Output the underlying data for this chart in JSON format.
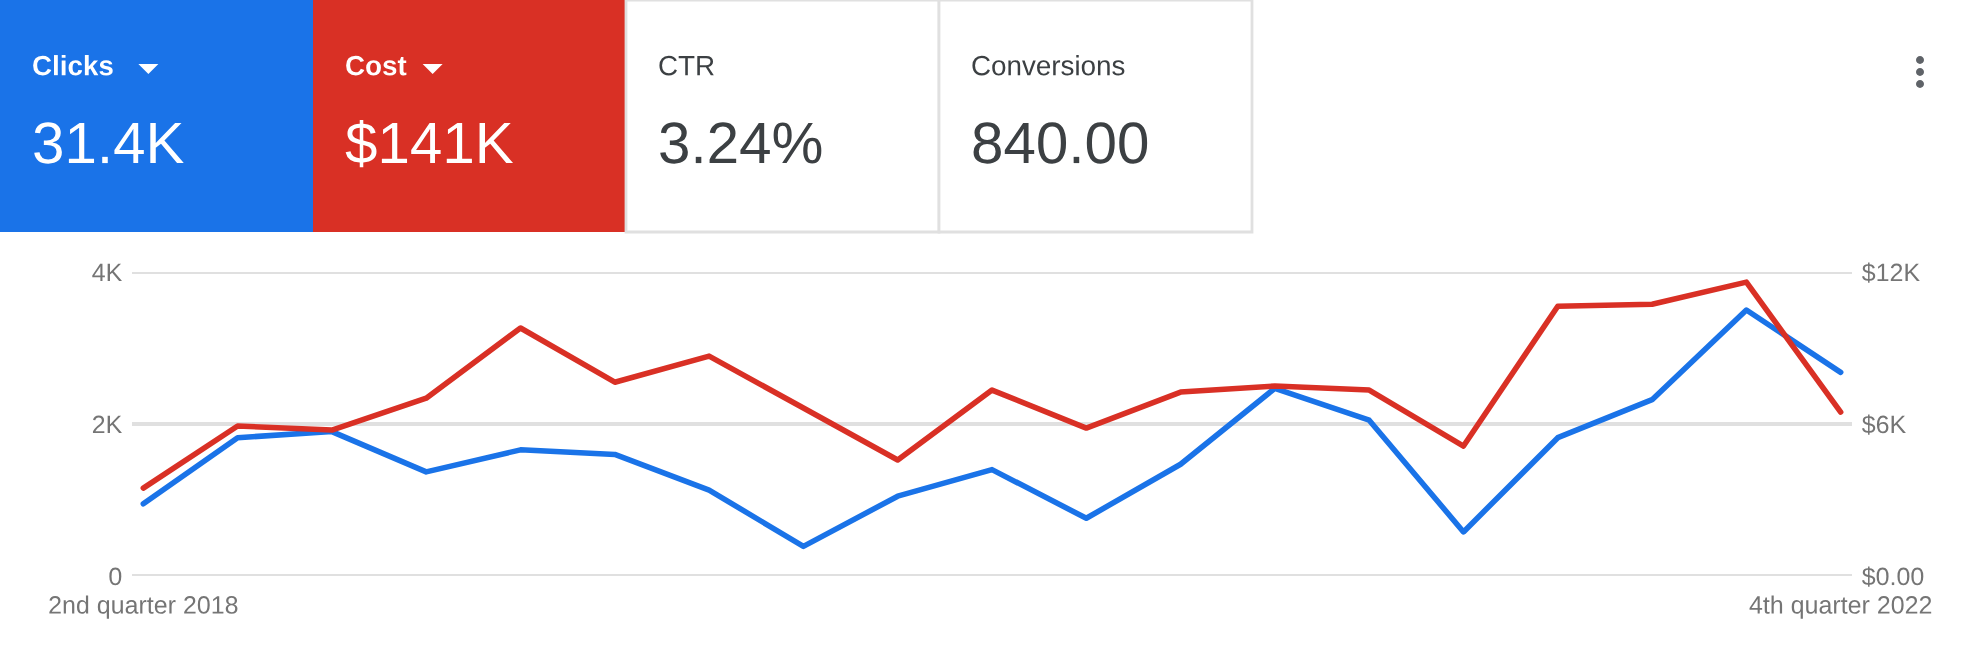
{
  "chart_data": [
    {
      "type": "other",
      "annotations": [
        "Clicks",
        "31.4K",
        "Cost",
        "$141K",
        "CTR",
        "3.24%",
        "Conversions",
        "840.00"
      ],
      "colors": [
        "#1a73e8",
        "#d93025",
        "#ffffff",
        "#ffffff"
      ]
    },
    {
      "type": "line",
      "categories": [
        "2nd quarter 2018",
        null,
        null,
        null,
        null,
        null,
        null,
        null,
        null,
        null,
        null,
        null,
        null,
        null,
        null,
        null,
        null,
        null,
        "4th quarter 2022"
      ],
      "series": [
        {
          "color": "#1a73e8",
          "values": [
            950,
            1820,
            1900,
            1370,
            1660,
            1600,
            1130,
            390,
            1050,
            1400,
            760,
            1470,
            2470,
            2050,
            580,
            1820,
            2320,
            3500,
            2680
          ]
        },
        {
          "color": "#d93025",
          "axis": "y2",
          "values": [
            3470,
            5920,
            5760,
            7020,
            9790,
            7650,
            8680,
            6630,
            4580,
            7340,
            5840,
            7260,
            7500,
            7340,
            5130,
            10650,
            10730,
            11600,
            6470
          ]
        }
      ],
      "ylim": [
        0,
        4000
      ],
      "yticks": [
        0,
        {
          "value": 2000,
          "label": "2K"
        },
        {
          "value": 4000,
          "label": "4K"
        }
      ],
      "y2lim": [
        0,
        12000
      ],
      "y2ticks": [
        {
          "value": 0,
          "label": "$0.00"
        },
        {
          "value": 6000,
          "label": "$6K"
        },
        {
          "value": 12000,
          "label": "$12K"
        }
      ],
      "grid": "y",
      "marker": "none",
      "line_style": "solid"
    }
  ]
}
